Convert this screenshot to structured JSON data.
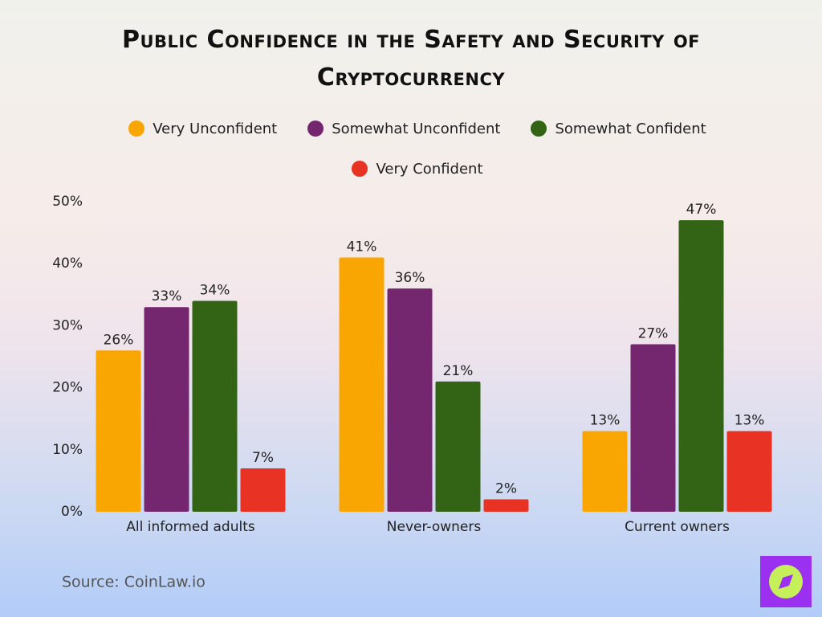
{
  "chart_data": {
    "type": "bar",
    "title": "Public Confidence in the Safety and Security of Cryptocurrency",
    "source": "Source: CoinLaw.io",
    "categories": [
      "All informed adults",
      "Never-owners",
      "Current owners"
    ],
    "series": [
      {
        "name": "Very Unconfident",
        "color": "#f9a602",
        "values": [
          26,
          41,
          13
        ],
        "value_labels": [
          "26%",
          "41%",
          "13%"
        ]
      },
      {
        "name": "Somewhat Unconfident",
        "color": "#74276f",
        "values": [
          33,
          36,
          27
        ],
        "value_labels": [
          "33%",
          "36%",
          "27%"
        ]
      },
      {
        "name": "Somewhat Confident",
        "color": "#336315",
        "values": [
          34,
          21,
          47
        ],
        "value_labels": [
          "34%",
          "21%",
          "47%"
        ]
      },
      {
        "name": "Very Confident",
        "color": "#e83224",
        "values": [
          7,
          2,
          13
        ],
        "value_labels": [
          "7%",
          "2%",
          "13%"
        ]
      }
    ],
    "ylim": [
      0,
      50
    ],
    "yticks": [
      {
        "value": 0,
        "label": "0%"
      },
      {
        "value": 10,
        "label": "10%"
      },
      {
        "value": 20,
        "label": "20%"
      },
      {
        "value": 30,
        "label": "30%"
      },
      {
        "value": 40,
        "label": "40%"
      },
      {
        "value": 50,
        "label": "50%"
      }
    ],
    "grid": false
  }
}
